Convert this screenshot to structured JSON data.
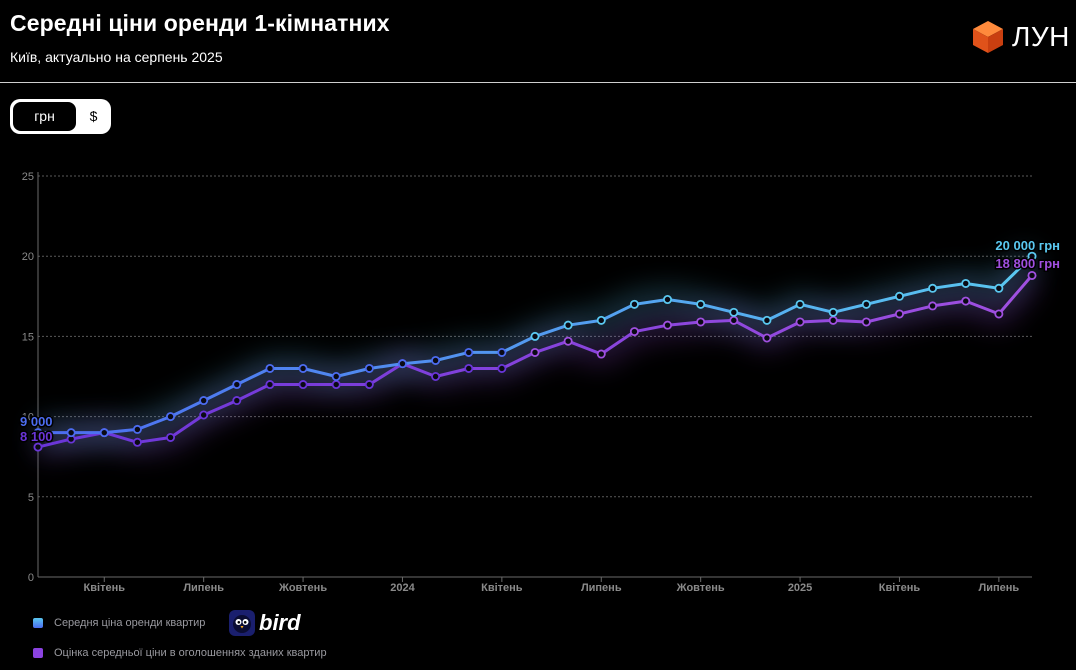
{
  "header": {
    "title": "Середні ціни оренди 1-кімнатних",
    "subtitle": "Київ, актуально на серпень 2025",
    "logo_text": "ЛУН"
  },
  "currency_toggle": {
    "options": [
      "грн",
      "$"
    ],
    "selected": "грн"
  },
  "legend": [
    {
      "label": "Середня ціна оренди квартир",
      "color": "#4aa3f0",
      "brand": "bird"
    },
    {
      "label": "Оцінка середньої ціни в оголошеннях зданих квартир",
      "color": "#8b43e0"
    }
  ],
  "chart_data": {
    "type": "line",
    "x_ticks": [
      "Квітень",
      "Липень",
      "Жовтень",
      "2024",
      "Квітень",
      "Липень",
      "Жовтень",
      "2025",
      "Квітень",
      "Липень"
    ],
    "yticks": [
      "0",
      "5",
      "10",
      "15",
      "20",
      "25"
    ],
    "ylim": [
      0,
      25
    ],
    "grid": true,
    "series": [
      {
        "name": "Середня ціна оренди квартир",
        "color_start": "#4c6cf0",
        "color_end": "#5ac8f0",
        "values": [
          9.0,
          9.0,
          9.0,
          9.2,
          10.0,
          11.0,
          12.0,
          13.0,
          13.0,
          12.5,
          13.0,
          13.3,
          13.5,
          14.0,
          14.0,
          15.0,
          15.7,
          16.0,
          17.0,
          17.3,
          17.0,
          16.5,
          16.0,
          17.0,
          16.5,
          17.0,
          17.5,
          18.0,
          18.3,
          18.0,
          20.0
        ],
        "start_label": "9 000",
        "end_label": "20 000 грн"
      },
      {
        "name": "Оцінка середньої ціни в оголошеннях зданих квартир",
        "color_start": "#6a35d8",
        "color_end": "#a050e0",
        "values": [
          8.1,
          8.6,
          9.0,
          8.4,
          8.7,
          10.1,
          11.0,
          12.0,
          12.0,
          12.0,
          12.0,
          13.3,
          12.5,
          13.0,
          13.0,
          14.0,
          14.7,
          13.9,
          15.3,
          15.7,
          15.9,
          16.0,
          14.9,
          15.9,
          16.0,
          15.9,
          16.4,
          16.9,
          17.2,
          16.4,
          18.8
        ],
        "start_label": "8 100",
        "end_label": "18 800 грн"
      }
    ]
  }
}
